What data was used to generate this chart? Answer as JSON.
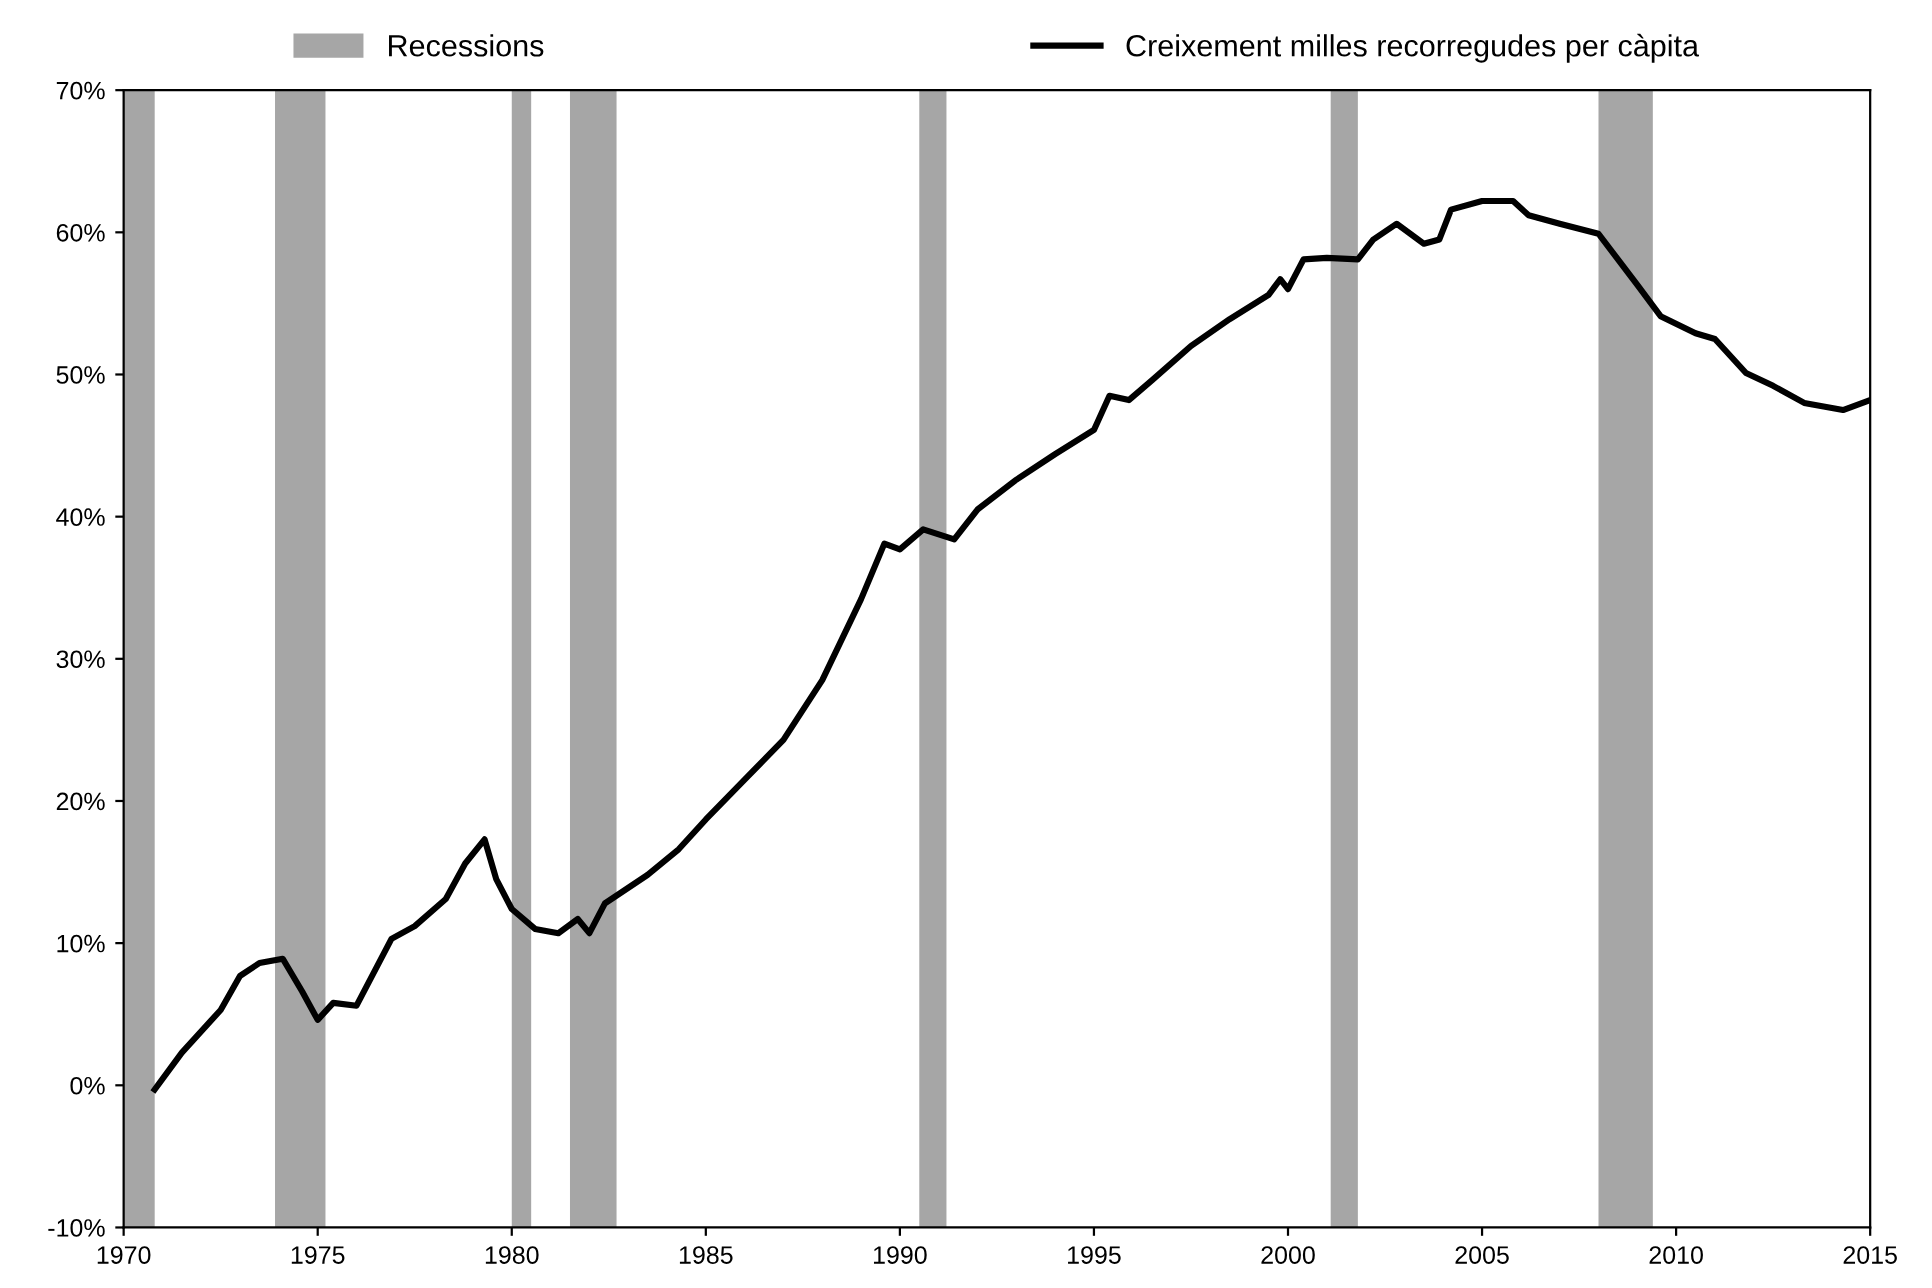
{
  "chart_data": {
    "type": "line",
    "x": [
      1970.8,
      1971.5,
      1972.5,
      1973.0,
      1973.5,
      1974.1,
      1974.6,
      1975.0,
      1975.4,
      1976.0,
      1976.9,
      1977.5,
      1978.3,
      1978.8,
      1979.3,
      1979.6,
      1980.0,
      1980.6,
      1981.2,
      1981.7,
      1982.0,
      1982.4,
      1983.5,
      1984.3,
      1985.0,
      1986.0,
      1987.0,
      1988.0,
      1989.0,
      1989.6,
      1990.0,
      1990.6,
      1991.4,
      1992.0,
      1993.0,
      1994.0,
      1995.0,
      1995.4,
      1995.9,
      1996.5,
      1997.5,
      1998.5,
      1999.5,
      1999.8,
      2000.0,
      2000.4,
      2001.0,
      2001.8,
      2002.2,
      2002.8,
      2003.5,
      2003.9,
      2004.2,
      2005.0,
      2005.8,
      2006.2,
      2007.0,
      2008.0,
      2009.0,
      2009.6,
      2010.5,
      2011.0,
      2011.8,
      2012.5,
      2013.3,
      2014.3,
      2015.0
    ],
    "series": [
      {
        "name": "Creixement milles recorregudes per càpita",
        "color": "#000000",
        "values": [
          -0.3,
          2.3,
          5.3,
          7.7,
          8.6,
          8.9,
          6.6,
          4.6,
          5.8,
          5.6,
          10.3,
          11.2,
          13.1,
          15.6,
          17.3,
          14.5,
          12.4,
          11.0,
          10.7,
          11.7,
          10.7,
          12.8,
          14.8,
          16.6,
          18.7,
          21.5,
          24.3,
          28.5,
          34.2,
          38.1,
          37.7,
          39.1,
          38.4,
          40.5,
          42.6,
          44.4,
          46.1,
          48.5,
          48.2,
          49.6,
          52.0,
          53.9,
          55.6,
          56.7,
          56.0,
          58.1,
          58.2,
          58.1,
          59.5,
          60.6,
          59.2,
          59.5,
          61.6,
          62.2,
          62.2,
          61.2,
          60.6,
          59.9,
          56.3,
          54.1,
          52.9,
          52.5,
          50.1,
          49.2,
          48.0,
          47.5,
          48.2
        ]
      }
    ],
    "bands": [
      {
        "axis": "x",
        "from": 1970.0,
        "to": 1970.8,
        "label": "Recessions",
        "color": "#a6a6a6"
      },
      {
        "axis": "x",
        "from": 1973.9,
        "to": 1975.2,
        "color": "#a6a6a6"
      },
      {
        "axis": "x",
        "from": 1980.0,
        "to": 1980.5,
        "color": "#a6a6a6"
      },
      {
        "axis": "x",
        "from": 1981.5,
        "to": 1982.7,
        "color": "#a6a6a6"
      },
      {
        "axis": "x",
        "from": 1990.5,
        "to": 1991.2,
        "color": "#a6a6a6"
      },
      {
        "axis": "x",
        "from": 2001.1,
        "to": 2001.8,
        "color": "#a6a6a6"
      },
      {
        "axis": "x",
        "from": 2008.0,
        "to": 2009.4,
        "color": "#a6a6a6"
      }
    ],
    "xlim": [
      1970,
      2015
    ],
    "xticks": [
      1970,
      1975,
      1980,
      1985,
      1990,
      1995,
      2000,
      2005,
      2010,
      2015
    ],
    "ylim": [
      -10,
      70
    ],
    "yticks": [
      {
        "value": -10,
        "label": "-10%"
      },
      {
        "value": 0,
        "label": "0%"
      },
      {
        "value": 10,
        "label": "10%"
      },
      {
        "value": 20,
        "label": "20%"
      },
      {
        "value": 30,
        "label": "30%"
      },
      {
        "value": 40,
        "label": "40%"
      },
      {
        "value": 50,
        "label": "50%"
      },
      {
        "value": 60,
        "label": "60%"
      },
      {
        "value": 70,
        "label": "70%"
      }
    ],
    "grid": false,
    "legend": "top",
    "line_style": "solid",
    "marker": "none"
  }
}
